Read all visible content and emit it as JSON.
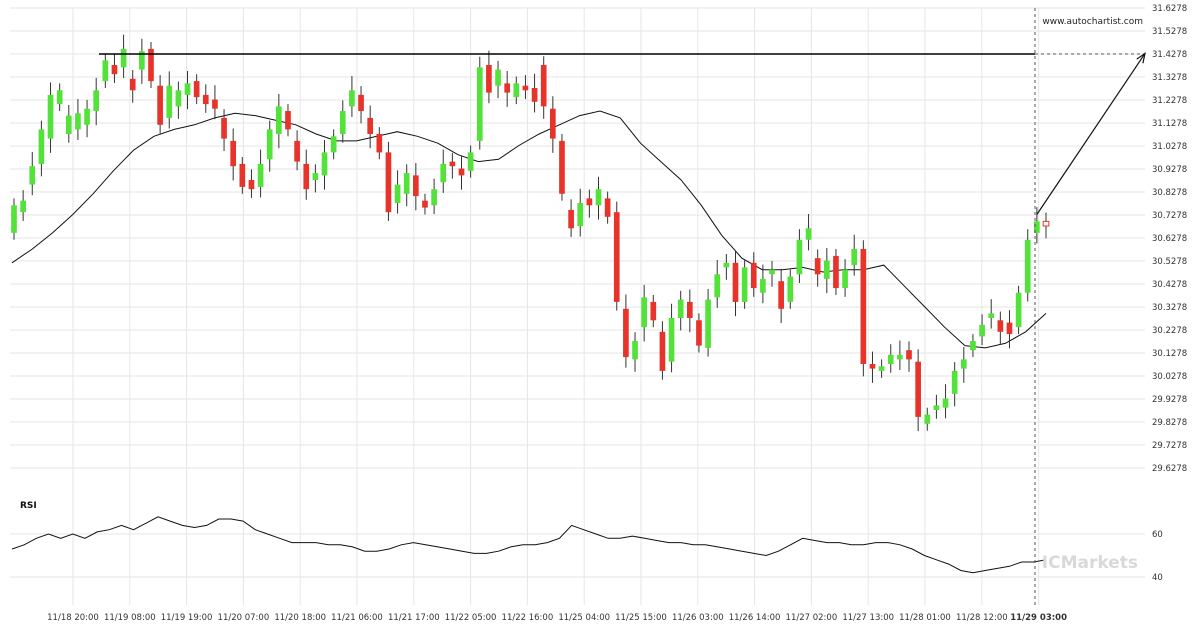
{
  "watermark": "www.autochartist.com",
  "rsi_label": "RSI",
  "broker_logo": "ICMarkets",
  "colors": {
    "bull": "#53e23a",
    "bear": "#e8332a",
    "wick": "#333333",
    "grid": "#e6e6e6",
    "line": "#111111",
    "axis_text": "#333333"
  },
  "chart_data": [
    {
      "type": "candlestick",
      "title": "",
      "price_ticks": [
        "31.6278",
        "31.5278",
        "31.4278",
        "31.3278",
        "31.2278",
        "31.1278",
        "31.0278",
        "30.9278",
        "30.8278",
        "30.7278",
        "30.6278",
        "30.5278",
        "30.4278",
        "30.3278",
        "30.2278",
        "30.1278",
        "30.0278",
        "29.9278",
        "29.8278",
        "29.7278",
        "29.6278"
      ],
      "ylim": [
        29.58,
        31.65
      ],
      "x_ticks": [
        "11/18 20:00",
        "11/19 08:00",
        "11/19 19:00",
        "11/20 07:00",
        "11/20 18:00",
        "11/21 06:00",
        "11/21 17:00",
        "11/22 05:00",
        "11/22 16:00",
        "11/25 04:00",
        "11/25 15:00",
        "11/26 03:00",
        "11/26 14:00",
        "11/27 02:00",
        "11/27 13:00",
        "11/28 01:00",
        "11/28 12:00",
        "11/29 03:00"
      ],
      "current_time_label": "11/29 03:00",
      "resistance_level": 31.4278,
      "projection": {
        "from": 30.73,
        "to": 31.43
      },
      "moving_average": [
        30.52,
        30.58,
        30.65,
        30.73,
        30.82,
        30.92,
        31.01,
        31.07,
        31.1,
        31.12,
        31.15,
        31.17,
        31.16,
        31.14,
        31.12,
        31.08,
        31.05,
        31.05,
        31.07,
        31.09,
        31.07,
        31.04,
        30.99,
        30.96,
        30.97,
        31.03,
        31.08,
        31.12,
        31.16,
        31.18,
        31.15,
        31.04,
        30.96,
        30.88,
        30.77,
        30.64,
        30.54,
        30.49,
        30.49,
        30.5,
        30.48,
        30.49,
        30.49,
        30.51,
        30.42,
        30.33,
        30.24,
        30.16,
        30.15,
        30.17,
        30.22,
        30.3
      ],
      "candles": [
        [
          30.65,
          30.77
        ],
        [
          30.74,
          30.79
        ],
        [
          30.86,
          30.94
        ],
        [
          30.95,
          31.1
        ],
        [
          31.06,
          31.25
        ],
        [
          31.21,
          31.27
        ],
        [
          31.08,
          31.16
        ],
        [
          31.1,
          31.17
        ],
        [
          31.12,
          31.19
        ],
        [
          31.18,
          31.27
        ],
        [
          31.31,
          31.4
        ],
        [
          31.38,
          31.34
        ],
        [
          31.37,
          31.45
        ],
        [
          31.32,
          31.27
        ],
        [
          31.36,
          31.44
        ],
        [
          31.45,
          31.31
        ],
        [
          31.29,
          31.12
        ],
        [
          31.15,
          31.29
        ],
        [
          31.2,
          31.27
        ],
        [
          31.25,
          31.3
        ],
        [
          31.31,
          31.24
        ],
        [
          31.25,
          31.21
        ],
        [
          31.23,
          31.19
        ],
        [
          31.15,
          31.06
        ],
        [
          31.05,
          30.94
        ],
        [
          30.95,
          30.85
        ],
        [
          30.88,
          30.84
        ],
        [
          30.85,
          30.95
        ],
        [
          30.97,
          31.1
        ],
        [
          31.08,
          31.2
        ],
        [
          31.18,
          31.1
        ],
        [
          31.05,
          30.96
        ],
        [
          30.95,
          30.84
        ],
        [
          30.88,
          30.91
        ],
        [
          30.9,
          31.0
        ],
        [
          31.0,
          31.07
        ],
        [
          31.08,
          31.18
        ],
        [
          31.2,
          31.27
        ],
        [
          31.25,
          31.18
        ],
        [
          31.15,
          31.08
        ],
        [
          31.08,
          31.0
        ],
        [
          31.0,
          30.74
        ],
        [
          30.78,
          30.86
        ],
        [
          30.82,
          30.91
        ],
        [
          30.9,
          30.81
        ],
        [
          30.79,
          30.76
        ],
        [
          30.77,
          30.84
        ],
        [
          30.87,
          30.95
        ],
        [
          30.96,
          30.94
        ],
        [
          30.93,
          30.9
        ],
        [
          30.92,
          31.0
        ],
        [
          31.05,
          31.37
        ],
        [
          31.38,
          31.26
        ],
        [
          31.29,
          31.36
        ],
        [
          31.3,
          31.26
        ],
        [
          31.24,
          31.3
        ],
        [
          31.29,
          31.27
        ],
        [
          31.28,
          31.22
        ],
        [
          31.38,
          31.2
        ],
        [
          31.19,
          31.06
        ],
        [
          31.05,
          30.82
        ],
        [
          30.75,
          30.67
        ],
        [
          30.68,
          30.78
        ],
        [
          30.8,
          30.77
        ],
        [
          30.77,
          30.84
        ],
        [
          30.8,
          30.72
        ],
        [
          30.74,
          30.35
        ],
        [
          30.32,
          30.11
        ],
        [
          30.1,
          30.18
        ],
        [
          30.24,
          30.37
        ],
        [
          30.35,
          30.27
        ],
        [
          30.22,
          30.05
        ],
        [
          30.09,
          30.28
        ],
        [
          30.28,
          30.36
        ],
        [
          30.35,
          30.28
        ],
        [
          30.27,
          30.16
        ],
        [
          30.15,
          30.36
        ],
        [
          30.37,
          30.47
        ],
        [
          30.5,
          30.52
        ],
        [
          30.52,
          30.35
        ],
        [
          30.35,
          30.5
        ],
        [
          30.52,
          30.41
        ],
        [
          30.39,
          30.45
        ],
        [
          30.47,
          30.49
        ],
        [
          30.44,
          30.32
        ],
        [
          30.35,
          30.46
        ],
        [
          30.47,
          30.62
        ],
        [
          30.62,
          30.67
        ],
        [
          30.54,
          30.47
        ],
        [
          30.45,
          30.53
        ],
        [
          30.55,
          30.41
        ],
        [
          30.41,
          30.49
        ],
        [
          30.51,
          30.58
        ],
        [
          30.58,
          30.08
        ],
        [
          30.08,
          30.06
        ],
        [
          30.05,
          30.07
        ],
        [
          30.08,
          30.12
        ],
        [
          30.1,
          30.12
        ],
        [
          30.14,
          30.1
        ],
        [
          30.09,
          29.85
        ],
        [
          29.82,
          29.86
        ],
        [
          29.88,
          29.9
        ],
        [
          29.89,
          29.93
        ],
        [
          29.95,
          30.05
        ],
        [
          30.06,
          30.1
        ],
        [
          30.14,
          30.18
        ],
        [
          30.2,
          30.25
        ],
        [
          30.28,
          30.3
        ],
        [
          30.27,
          30.22
        ],
        [
          30.26,
          30.21
        ],
        [
          30.24,
          30.39
        ],
        [
          30.39,
          30.62
        ],
        [
          30.65,
          30.7
        ],
        [
          30.7,
          30.68
        ]
      ]
    },
    {
      "type": "line",
      "title": "RSI",
      "ylim": [
        35,
        75
      ],
      "y_ticks": [
        "60",
        "40"
      ],
      "values": [
        53,
        55,
        58,
        60,
        58,
        60,
        58,
        61,
        62,
        64,
        62,
        65,
        68,
        66,
        64,
        63,
        64,
        67,
        67,
        66,
        62,
        60,
        58,
        56,
        56,
        56,
        55,
        55,
        54,
        52,
        52,
        53,
        55,
        56,
        55,
        54,
        53,
        52,
        51,
        51,
        52,
        54,
        55,
        55,
        56,
        58,
        64,
        62,
        60,
        58,
        58,
        59,
        58,
        57,
        56,
        56,
        55,
        55,
        54,
        53,
        52,
        51,
        50,
        52,
        55,
        58,
        57,
        56,
        56,
        55,
        55,
        56,
        56,
        55,
        53,
        50,
        48,
        46,
        43,
        42,
        43,
        44,
        45,
        47,
        47,
        48
      ]
    }
  ]
}
